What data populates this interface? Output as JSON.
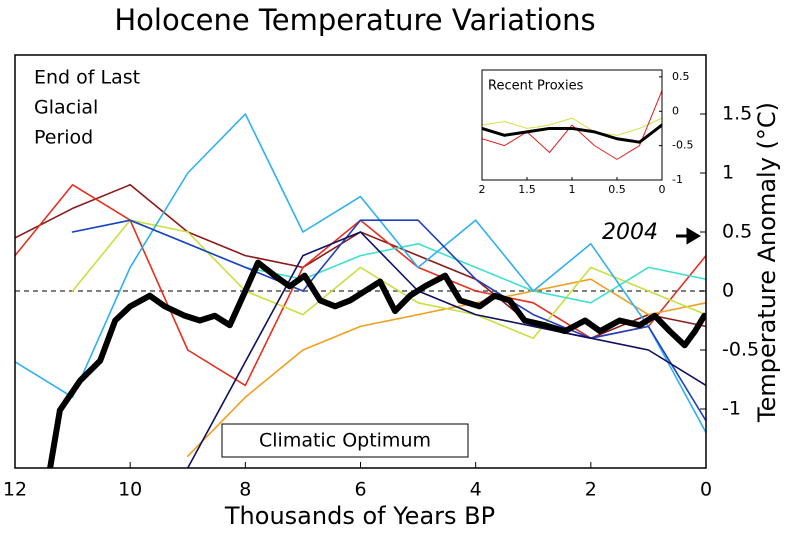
{
  "chart_data": {
    "type": "line",
    "title": "Holocene Temperature Variations",
    "xlabel": "Thousands of Years BP",
    "ylabel": "Temperature Anomaly (°C)",
    "xlim": [
      12,
      0
    ],
    "ylim": [
      -1.5,
      2
    ],
    "xticks": [
      12,
      10,
      8,
      6,
      4,
      2,
      0
    ],
    "yticks": [
      -1,
      -0.5,
      0,
      0.5,
      1,
      1.5
    ],
    "reference_line": 0,
    "annotations": {
      "glacial": [
        "End of Last",
        "Glacial",
        "Period"
      ],
      "optimum": "Climatic Optimum",
      "year": "2004"
    },
    "series": [
      {
        "color": "#8b1a1a",
        "x": [
          12,
          11,
          10,
          9,
          8,
          7,
          6,
          5,
          4,
          3,
          2,
          1,
          0
        ],
        "values": [
          0.45,
          0.7,
          0.9,
          0.5,
          0.3,
          0.2,
          0.5,
          0.3,
          0.1,
          -0.3,
          -0.4,
          -0.2,
          -0.3
        ]
      },
      {
        "color": "#e53020",
        "x": [
          12,
          11,
          10,
          9,
          8,
          7,
          6,
          5,
          4,
          3,
          2,
          1,
          0
        ],
        "values": [
          0.3,
          0.9,
          0.6,
          -0.5,
          -0.8,
          0.2,
          0.6,
          0.2,
          0.0,
          -0.1,
          -0.4,
          -0.3,
          0.3
        ]
      },
      {
        "color": "#f0a020",
        "x": [
          12,
          11,
          10,
          9,
          8,
          7,
          6,
          5,
          4,
          3,
          2,
          1,
          0
        ],
        "values": [
          null,
          null,
          null,
          -1.4,
          -0.9,
          -0.5,
          -0.3,
          -0.2,
          -0.1,
          0.0,
          0.1,
          -0.2,
          -0.1
        ]
      },
      {
        "color": "#c8e040",
        "x": [
          12,
          11,
          10,
          9,
          8,
          7,
          6,
          5,
          4,
          3,
          2,
          1,
          0
        ],
        "values": [
          null,
          0.0,
          0.6,
          0.5,
          0.0,
          -0.2,
          0.2,
          -0.1,
          -0.2,
          -0.4,
          0.2,
          0.0,
          -0.2
        ]
      },
      {
        "color": "#40e0d0",
        "x": [
          12,
          11,
          10,
          9,
          8,
          7,
          6,
          5,
          4,
          3,
          2,
          1,
          0
        ],
        "values": [
          null,
          0.5,
          0.6,
          0.4,
          0.2,
          0.1,
          0.3,
          0.4,
          0.2,
          0.0,
          -0.1,
          0.2,
          0.1
        ]
      },
      {
        "color": "#30b0f0",
        "x": [
          12,
          11,
          10,
          9,
          8,
          7,
          6,
          5,
          4,
          3,
          2,
          1,
          0
        ],
        "values": [
          -0.6,
          -0.9,
          0.2,
          1.0,
          1.5,
          0.5,
          0.8,
          0.2,
          0.6,
          0.0,
          0.4,
          -0.3,
          -1.2
        ]
      },
      {
        "color": "#2040c0",
        "x": [
          12,
          11,
          10,
          9,
          8,
          7,
          6,
          5,
          4,
          3,
          2,
          1,
          0
        ],
        "values": [
          null,
          0.5,
          0.6,
          0.4,
          0.2,
          0.0,
          0.6,
          0.6,
          0.1,
          -0.2,
          -0.4,
          -0.3,
          -1.1
        ]
      },
      {
        "color": "#101060",
        "x": [
          12,
          11,
          10,
          9,
          8,
          7,
          6,
          5,
          4,
          3,
          2,
          1,
          0
        ],
        "values": [
          null,
          null,
          null,
          -1.5,
          -0.6,
          0.3,
          0.5,
          0.0,
          -0.2,
          -0.3,
          -0.4,
          -0.5,
          -0.8
        ]
      },
      {
        "color": "#000000",
        "width": 6,
        "x": [
          11.39,
          11.22,
          10.87,
          10.52,
          10.26,
          10.0,
          9.66,
          9.4,
          9.05,
          8.79,
          8.53,
          8.27,
          8.0,
          7.78,
          7.49,
          7.23,
          6.97,
          6.7,
          6.44,
          6.18,
          5.92,
          5.66,
          5.4,
          5.14,
          4.88,
          4.53,
          4.27,
          3.93,
          3.67,
          3.41,
          3.15,
          2.8,
          2.45,
          2.1,
          1.84,
          1.5,
          1.15,
          0.89,
          0.63,
          0.37,
          0.19,
          0.03
        ],
        "values": [
          -1.5,
          -1.01,
          -0.76,
          -0.59,
          -0.25,
          -0.13,
          -0.04,
          -0.13,
          -0.21,
          -0.25,
          -0.21,
          -0.29,
          0,
          0.24,
          0.13,
          0.04,
          0.13,
          -0.08,
          -0.13,
          -0.08,
          0,
          0.08,
          -0.17,
          -0.04,
          0.04,
          0.13,
          -0.08,
          -0.13,
          -0.04,
          -0.08,
          -0.25,
          -0.29,
          -0.34,
          -0.25,
          -0.34,
          -0.25,
          -0.29,
          -0.21,
          -0.34,
          -0.46,
          -0.34,
          -0.21
        ]
      }
    ],
    "inset": {
      "title": "Recent Proxies",
      "xlim": [
        2,
        0
      ],
      "ylim": [
        -1,
        0.6
      ],
      "xticks": [
        2,
        1.5,
        1,
        0.5,
        0
      ],
      "yticks": [
        0.5,
        0,
        -0.5,
        -1
      ],
      "series": [
        {
          "color": "#d0e040",
          "width": 1,
          "x": [
            2,
            1.75,
            1.5,
            1.25,
            1,
            0.75,
            0.5,
            0.25,
            0
          ],
          "values": [
            -0.2,
            -0.15,
            -0.25,
            -0.2,
            -0.1,
            -0.3,
            -0.35,
            -0.25,
            -0.1
          ]
        },
        {
          "color": "#e02020",
          "width": 1,
          "x": [
            2,
            1.75,
            1.5,
            1.25,
            1,
            0.75,
            0.5,
            0.25,
            0
          ],
          "values": [
            -0.4,
            -0.5,
            -0.3,
            -0.6,
            -0.2,
            -0.5,
            -0.7,
            -0.5,
            0.3
          ]
        },
        {
          "color": "#000000",
          "width": 3,
          "x": [
            2,
            1.75,
            1.5,
            1.25,
            1,
            0.75,
            0.5,
            0.25,
            0
          ],
          "values": [
            -0.25,
            -0.35,
            -0.3,
            -0.25,
            -0.25,
            -0.3,
            -0.4,
            -0.45,
            -0.2
          ]
        }
      ]
    }
  }
}
